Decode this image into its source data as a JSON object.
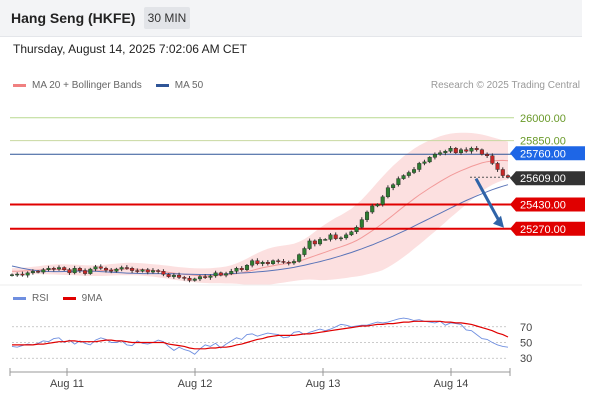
{
  "header": {
    "title": "Hang Seng (HKFE)",
    "timeframe": "30 MIN",
    "datetime": "Thursday, August 14, 2025 7:02:06 AM CET"
  },
  "legend": {
    "items": [
      {
        "label": "MA 20 + Bollinger Bands",
        "color": "#f08080"
      },
      {
        "label": "MA 50",
        "color": "#2f5597"
      }
    ],
    "credit": "Research © 2025 Trading Central"
  },
  "rsi_legend": {
    "items": [
      {
        "label": "RSI",
        "color": "#6f8fe0"
      },
      {
        "label": "9MA",
        "color": "#e00000"
      }
    ]
  },
  "chart_data": [
    {
      "type": "candlestick",
      "title": "Hang Seng (HKFE)",
      "timeframe": "30 MIN",
      "ylim": [
        24900,
        26150
      ],
      "x_ticks": [
        "Aug 11",
        "Aug 12",
        "Aug 13",
        "Aug 14"
      ],
      "levels": [
        {
          "label": "26000.00",
          "value": 26000,
          "kind": "resistance",
          "line_color": "#b8d98f",
          "text_color": "#6a9a2a"
        },
        {
          "label": "25850.00",
          "value": 25850,
          "kind": "resistance",
          "line_color": "#c8d8a0",
          "text_color": "#6a9a2a"
        },
        {
          "label": "25760.00",
          "value": 25760,
          "kind": "pivot",
          "line_color": "#2f5597",
          "fill": "#1e66e6",
          "text_color": "#ffffff"
        },
        {
          "label": "25609.00",
          "value": 25609,
          "kind": "last",
          "line_color": "#555555",
          "fill": "#333333",
          "text_color": "#ffffff"
        },
        {
          "label": "25430.00",
          "value": 25430,
          "kind": "support",
          "line_color": "#e00000",
          "fill": "#e00000",
          "text_color": "#ffffff"
        },
        {
          "label": "25270.00",
          "value": 25270,
          "kind": "support",
          "line_color": "#e00000",
          "fill": "#e00000",
          "text_color": "#ffffff"
        }
      ],
      "forecast_arrow": {
        "from": 25600,
        "to": 25270,
        "color": "#2f64a8"
      },
      "close": [
        24968,
        24972,
        24965,
        24980,
        24990,
        24985,
        25000,
        25010,
        25005,
        25015,
        25000,
        24980,
        25010,
        24995,
        24975,
        25005,
        25020,
        25010,
        24998,
        24990,
        25005,
        25015,
        25010,
        24995,
        24990,
        25000,
        24985,
        24995,
        24990,
        24970,
        24955,
        24965,
        24950,
        24945,
        24930,
        24940,
        24955,
        24950,
        24960,
        24980,
        24965,
        24975,
        24990,
        25010,
        25000,
        25030,
        25060,
        25040,
        25050,
        25040,
        25060,
        25055,
        25050,
        25045,
        25055,
        25100,
        25140,
        25190,
        25170,
        25200,
        25200,
        25230,
        25205,
        25210,
        25230,
        25250,
        25280,
        25330,
        25380,
        25420,
        25430,
        25480,
        25540,
        25560,
        25600,
        25620,
        25640,
        25660,
        25700,
        25710,
        25740,
        25760,
        25770,
        25780,
        25800,
        25770,
        25790,
        25780,
        25800,
        25790,
        25760,
        25750,
        25700,
        25660,
        25620,
        25609
      ],
      "ma20": [
        24990,
        24991,
        24992,
        24994,
        24996,
        24998,
        25000,
        25001,
        25002,
        25002,
        25001,
        25000,
        24999,
        24997,
        24995,
        24994,
        24994,
        24995,
        24997,
        25000,
        25002,
        25004,
        25005,
        25005,
        25004,
        25002,
        24999,
        24996,
        24992,
        24988,
        24983,
        24978,
        24974,
        24970,
        24967,
        24964,
        24962,
        24961,
        24961,
        24962,
        24964,
        24966,
        24970,
        24975,
        24981,
        24988,
        24996,
        25005,
        25013,
        25020,
        25027,
        25033,
        25038,
        25043,
        25049,
        25058,
        25068,
        25080,
        25092,
        25104,
        25116,
        25128,
        25140,
        25151,
        25163,
        25177,
        25193,
        25212,
        25234,
        25257,
        25281,
        25306,
        25333,
        25360,
        25388,
        25415,
        25441,
        25467,
        25492,
        25515,
        25538,
        25559,
        25580,
        25600,
        25620,
        25636,
        25652,
        25666,
        25680,
        25692,
        25703,
        25711,
        25716,
        25719,
        25720,
        25718
      ],
      "bb_upper": [
        25010,
        25012,
        25013,
        25016,
        25020,
        25024,
        25028,
        25032,
        25035,
        25036,
        25036,
        25035,
        25034,
        25032,
        25030,
        25029,
        25029,
        25031,
        25034,
        25038,
        25041,
        25044,
        25046,
        25046,
        25045,
        25043,
        25040,
        25037,
        25034,
        25030,
        25026,
        25022,
        25018,
        25015,
        25012,
        25010,
        25009,
        25009,
        25010,
        25013,
        25017,
        25022,
        25030,
        25042,
        25057,
        25074,
        25092,
        25110,
        25125,
        25138,
        25148,
        25155,
        25160,
        25165,
        25172,
        25185,
        25202,
        25224,
        25250,
        25276,
        25300,
        25322,
        25342,
        25360,
        25380,
        25402,
        25430,
        25462,
        25498,
        25536,
        25576,
        25614,
        25650,
        25684,
        25716,
        25746,
        25772,
        25796,
        25818,
        25836,
        25852,
        25866,
        25878,
        25888,
        25896,
        25900,
        25902,
        25902,
        25900,
        25896,
        25890,
        25882,
        25872,
        25862,
        25852,
        25842
      ],
      "bb_lower": [
        24970,
        24970,
        24971,
        24972,
        24972,
        24972,
        24972,
        24970,
        24969,
        24968,
        24966,
        24965,
        24964,
        24962,
        24960,
        24959,
        24959,
        24959,
        24960,
        24962,
        24963,
        24964,
        24964,
        24964,
        24963,
        24961,
        24958,
        24955,
        24950,
        24946,
        24940,
        24934,
        24930,
        24925,
        24922,
        24918,
        24915,
        24913,
        24912,
        24911,
        24911,
        24910,
        24910,
        24908,
        24905,
        24902,
        24900,
        24900,
        24901,
        24902,
        24906,
        24911,
        24916,
        24921,
        24926,
        24931,
        24934,
        24936,
        24934,
        24932,
        24932,
        24934,
        24938,
        24942,
        24946,
        24952,
        24956,
        24962,
        24970,
        24978,
        24986,
        24998,
        25016,
        25036,
        25060,
        25084,
        25110,
        25138,
        25166,
        25194,
        25224,
        25252,
        25282,
        25312,
        25344,
        25372,
        25402,
        25430,
        25460,
        25488,
        25516,
        25540,
        25560,
        25576,
        25588,
        25594
      ],
      "ma50": [
        25025,
        25018,
        25010,
        25003,
        24998,
        24994,
        24991,
        24989,
        24988,
        24988,
        24989,
        24990,
        24991,
        24992,
        24992,
        24991,
        24990,
        24988,
        24986,
        24984,
        24982,
        24980,
        24978,
        24977,
        24976,
        24975,
        24975,
        24975,
        24975,
        24975,
        24975,
        24974,
        24973,
        24972,
        24971,
        24970,
        24969,
        24969,
        24969,
        24970,
        24971,
        24973,
        24975,
        24977,
        24979,
        24981,
        24983,
        24986,
        24989,
        24992,
        24996,
        25000,
        25005,
        25010,
        25016,
        25023,
        25030,
        25038,
        25046,
        25054,
        25063,
        25072,
        25082,
        25092,
        25103,
        25114,
        25126,
        25138,
        25151,
        25164,
        25178,
        25192,
        25207,
        25222,
        25238,
        25254,
        25270,
        25287,
        25304,
        25321,
        25338,
        25355,
        25372,
        25389,
        25406,
        25423,
        25440,
        25456,
        25471,
        25486,
        25500,
        25514,
        25527,
        25539,
        25550,
        25560
      ],
      "last": 25609
    },
    {
      "type": "line",
      "title": "RSI",
      "ylim": [
        15,
        85
      ],
      "yticks": [
        30,
        50,
        70
      ],
      "series": [
        {
          "name": "RSI",
          "color": "#6f8fe0",
          "values": [
            45,
            44,
            46,
            48,
            47,
            49,
            52,
            51,
            55,
            56,
            50,
            53,
            48,
            52,
            49,
            47,
            53,
            56,
            54,
            50,
            50,
            52,
            47,
            46,
            52,
            49,
            48,
            50,
            53,
            51,
            45,
            40,
            44,
            41,
            39,
            35,
            42,
            47,
            45,
            49,
            43,
            48,
            52,
            56,
            54,
            60,
            61,
            58,
            60,
            62,
            61,
            60,
            56,
            57,
            63,
            64,
            60,
            63,
            65,
            67,
            65,
            67,
            70,
            73,
            72,
            70,
            71,
            72,
            72,
            74,
            76,
            75,
            76,
            78,
            80,
            81,
            80,
            78,
            79,
            77,
            76,
            75,
            77,
            72,
            75,
            74,
            73,
            66,
            65,
            60,
            55,
            54,
            50,
            47,
            45,
            44
          ]
        },
        {
          "name": "9MA",
          "color": "#e00000",
          "values": [
            47,
            47,
            47,
            47,
            47,
            48,
            48,
            49,
            50,
            51,
            51,
            52,
            52,
            51,
            51,
            51,
            51,
            52,
            53,
            53,
            52,
            52,
            51,
            50,
            50,
            50,
            50,
            50,
            50,
            50,
            48,
            47,
            46,
            45,
            43,
            42,
            42,
            42,
            43,
            43,
            44,
            44,
            45,
            47,
            48,
            50,
            52,
            54,
            55,
            57,
            58,
            59,
            59,
            59,
            59,
            60,
            61,
            61,
            62,
            63,
            64,
            65,
            66,
            67,
            68,
            69,
            70,
            71,
            71,
            72,
            73,
            73,
            74,
            74,
            75,
            76,
            76,
            77,
            77,
            77,
            77,
            77,
            77,
            76,
            76,
            75,
            75,
            74,
            73,
            71,
            69,
            67,
            65,
            62,
            60,
            57
          ]
        }
      ]
    }
  ]
}
